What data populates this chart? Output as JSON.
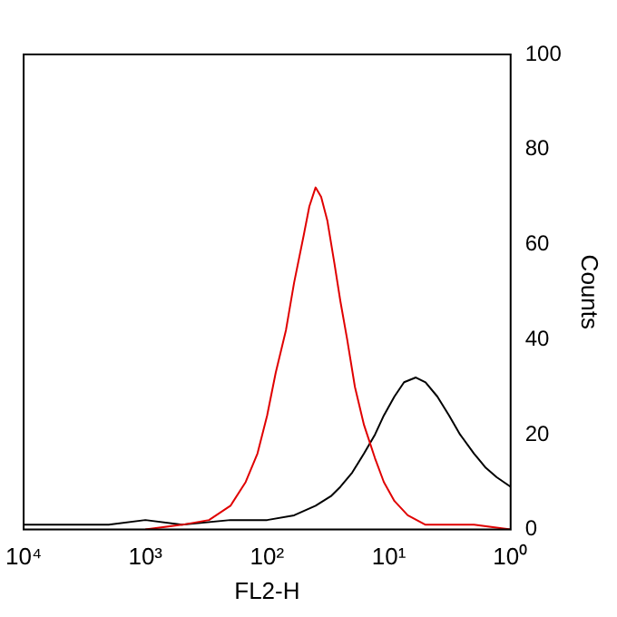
{
  "chart_data": {
    "type": "line",
    "xlabel": "FL2-H",
    "ylabel": "Counts",
    "log": "x",
    "xlim": [
      10000,
      1
    ],
    "ylim": [
      0,
      100
    ],
    "xticks": [
      {
        "value": 10000,
        "label": "10⁴"
      },
      {
        "value": 1000,
        "label": "10³"
      },
      {
        "value": 100,
        "label": "10²"
      },
      {
        "value": 10,
        "label": "10¹"
      },
      {
        "value": 1,
        "label": "10⁰"
      }
    ],
    "yticks": [
      0,
      20,
      40,
      60,
      80,
      100
    ],
    "grid": false,
    "legend": false,
    "marker": "none",
    "line_style": "solid",
    "series": [
      {
        "color": "#e00000",
        "x": [
          1000,
          500,
          300,
          200,
          150,
          120,
          100,
          85,
          70,
          60,
          50,
          45,
          40,
          36,
          32,
          28,
          25,
          22,
          19,
          16,
          13,
          11,
          9,
          7,
          5,
          3,
          2,
          1
        ],
        "values": [
          0,
          1,
          2,
          5,
          10,
          16,
          24,
          33,
          42,
          52,
          62,
          68,
          72,
          70,
          65,
          56,
          48,
          40,
          30,
          22,
          15,
          10,
          6,
          3,
          1,
          1,
          1,
          0
        ]
      },
      {
        "color": "#000000",
        "x": [
          10000,
          5000,
          2000,
          1000,
          500,
          200,
          100,
          60,
          40,
          30,
          25,
          20,
          16,
          13,
          11,
          9,
          7.5,
          6,
          5,
          4,
          3.2,
          2.6,
          2,
          1.6,
          1.3,
          1
        ],
        "values": [
          1,
          1,
          1,
          2,
          1,
          2,
          2,
          3,
          5,
          7,
          9,
          12,
          16,
          20,
          24,
          28,
          31,
          32,
          31,
          28,
          24,
          20,
          16,
          13,
          11,
          9
        ]
      }
    ]
  }
}
